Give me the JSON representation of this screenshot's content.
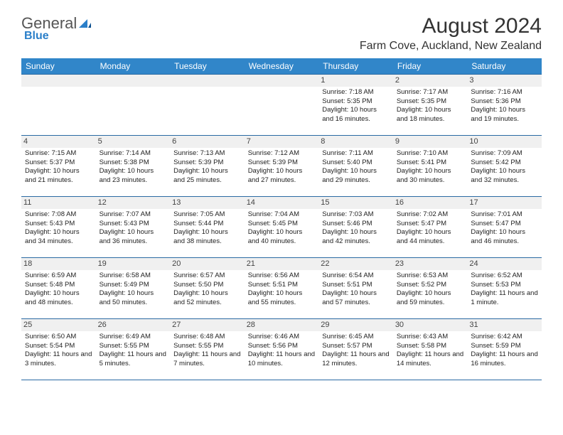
{
  "logo": {
    "part1": "General",
    "part2": "Blue"
  },
  "title": "August 2024",
  "location": "Farm Cove, Auckland, New Zealand",
  "colors": {
    "header_bg": "#3186c9",
    "header_text": "#ffffff",
    "border": "#2a6aa3",
    "daynum_bg": "#f0f0f0",
    "text": "#222222",
    "logo_blue": "#2a7fc9"
  },
  "daynames": [
    "Sunday",
    "Monday",
    "Tuesday",
    "Wednesday",
    "Thursday",
    "Friday",
    "Saturday"
  ],
  "weeks": [
    [
      null,
      null,
      null,
      null,
      {
        "d": "1",
        "sr": "7:18 AM",
        "ss": "5:35 PM",
        "dl": "10 hours and 16 minutes."
      },
      {
        "d": "2",
        "sr": "7:17 AM",
        "ss": "5:35 PM",
        "dl": "10 hours and 18 minutes."
      },
      {
        "d": "3",
        "sr": "7:16 AM",
        "ss": "5:36 PM",
        "dl": "10 hours and 19 minutes."
      }
    ],
    [
      {
        "d": "4",
        "sr": "7:15 AM",
        "ss": "5:37 PM",
        "dl": "10 hours and 21 minutes."
      },
      {
        "d": "5",
        "sr": "7:14 AM",
        "ss": "5:38 PM",
        "dl": "10 hours and 23 minutes."
      },
      {
        "d": "6",
        "sr": "7:13 AM",
        "ss": "5:39 PM",
        "dl": "10 hours and 25 minutes."
      },
      {
        "d": "7",
        "sr": "7:12 AM",
        "ss": "5:39 PM",
        "dl": "10 hours and 27 minutes."
      },
      {
        "d": "8",
        "sr": "7:11 AM",
        "ss": "5:40 PM",
        "dl": "10 hours and 29 minutes."
      },
      {
        "d": "9",
        "sr": "7:10 AM",
        "ss": "5:41 PM",
        "dl": "10 hours and 30 minutes."
      },
      {
        "d": "10",
        "sr": "7:09 AM",
        "ss": "5:42 PM",
        "dl": "10 hours and 32 minutes."
      }
    ],
    [
      {
        "d": "11",
        "sr": "7:08 AM",
        "ss": "5:43 PM",
        "dl": "10 hours and 34 minutes."
      },
      {
        "d": "12",
        "sr": "7:07 AM",
        "ss": "5:43 PM",
        "dl": "10 hours and 36 minutes."
      },
      {
        "d": "13",
        "sr": "7:05 AM",
        "ss": "5:44 PM",
        "dl": "10 hours and 38 minutes."
      },
      {
        "d": "14",
        "sr": "7:04 AM",
        "ss": "5:45 PM",
        "dl": "10 hours and 40 minutes."
      },
      {
        "d": "15",
        "sr": "7:03 AM",
        "ss": "5:46 PM",
        "dl": "10 hours and 42 minutes."
      },
      {
        "d": "16",
        "sr": "7:02 AM",
        "ss": "5:47 PM",
        "dl": "10 hours and 44 minutes."
      },
      {
        "d": "17",
        "sr": "7:01 AM",
        "ss": "5:47 PM",
        "dl": "10 hours and 46 minutes."
      }
    ],
    [
      {
        "d": "18",
        "sr": "6:59 AM",
        "ss": "5:48 PM",
        "dl": "10 hours and 48 minutes."
      },
      {
        "d": "19",
        "sr": "6:58 AM",
        "ss": "5:49 PM",
        "dl": "10 hours and 50 minutes."
      },
      {
        "d": "20",
        "sr": "6:57 AM",
        "ss": "5:50 PM",
        "dl": "10 hours and 52 minutes."
      },
      {
        "d": "21",
        "sr": "6:56 AM",
        "ss": "5:51 PM",
        "dl": "10 hours and 55 minutes."
      },
      {
        "d": "22",
        "sr": "6:54 AM",
        "ss": "5:51 PM",
        "dl": "10 hours and 57 minutes."
      },
      {
        "d": "23",
        "sr": "6:53 AM",
        "ss": "5:52 PM",
        "dl": "10 hours and 59 minutes."
      },
      {
        "d": "24",
        "sr": "6:52 AM",
        "ss": "5:53 PM",
        "dl": "11 hours and 1 minute."
      }
    ],
    [
      {
        "d": "25",
        "sr": "6:50 AM",
        "ss": "5:54 PM",
        "dl": "11 hours and 3 minutes."
      },
      {
        "d": "26",
        "sr": "6:49 AM",
        "ss": "5:55 PM",
        "dl": "11 hours and 5 minutes."
      },
      {
        "d": "27",
        "sr": "6:48 AM",
        "ss": "5:55 PM",
        "dl": "11 hours and 7 minutes."
      },
      {
        "d": "28",
        "sr": "6:46 AM",
        "ss": "5:56 PM",
        "dl": "11 hours and 10 minutes."
      },
      {
        "d": "29",
        "sr": "6:45 AM",
        "ss": "5:57 PM",
        "dl": "11 hours and 12 minutes."
      },
      {
        "d": "30",
        "sr": "6:43 AM",
        "ss": "5:58 PM",
        "dl": "11 hours and 14 minutes."
      },
      {
        "d": "31",
        "sr": "6:42 AM",
        "ss": "5:59 PM",
        "dl": "11 hours and 16 minutes."
      }
    ]
  ],
  "labels": {
    "sunrise": "Sunrise: ",
    "sunset": "Sunset: ",
    "daylight": "Daylight: "
  }
}
